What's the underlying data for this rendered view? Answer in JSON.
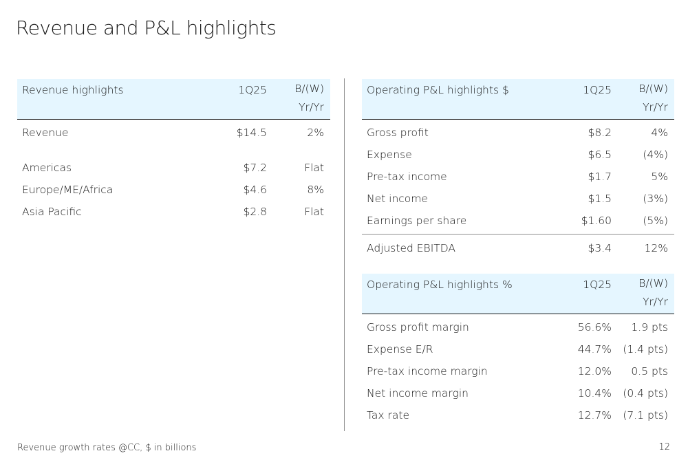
{
  "title": "Revenue and P&L highlights",
  "revenue_table": {
    "header": {
      "label": "Revenue highlights",
      "col1": "1Q25",
      "col2_line1": "B/(W)",
      "col2_line2": "Yr/Yr"
    },
    "rows": [
      {
        "label": "Revenue",
        "value": "$14.5",
        "change": "2%"
      },
      {
        "label": "Americas",
        "value": "$7.2",
        "change": "Flat"
      },
      {
        "label": "Europe/ME/Africa",
        "value": "$4.6",
        "change": "8%"
      },
      {
        "label": "Asia Pacific",
        "value": "$2.8",
        "change": "Flat"
      }
    ]
  },
  "pl_dollar_table": {
    "header": {
      "label": "Operating P&L highlights $",
      "col1": "1Q25",
      "col2_line1": "B/(W)",
      "col2_line2": "Yr/Yr"
    },
    "rows": [
      {
        "label": "Gross profit",
        "value": "$8.2",
        "change": "4%"
      },
      {
        "label": "Expense",
        "value": "$6.5",
        "change": "(4%)"
      },
      {
        "label": "Pre-tax income",
        "value": "$1.7",
        "change": "5%"
      },
      {
        "label": "Net income",
        "value": "$1.5",
        "change": "(3%)"
      },
      {
        "label": "Earnings per share",
        "value": "$1.60",
        "change": "(5%)"
      },
      {
        "label": "Adjusted EBITDA",
        "value": "$3.4",
        "change": "12%"
      }
    ]
  },
  "pl_percent_table": {
    "header": {
      "label": "Operating P&L highlights %",
      "col1": "1Q25",
      "col2_line1": "B/(W)",
      "col2_line2": "Yr/Yr"
    },
    "rows": [
      {
        "label": "Gross profit margin",
        "value": "56.6%",
        "change": "1.9 pts"
      },
      {
        "label": "Expense E/R",
        "value": "44.7%",
        "change": "(1.4 pts)"
      },
      {
        "label": "Pre-tax income margin",
        "value": "12.0%",
        "change": "0.5 pts"
      },
      {
        "label": "Net income margin",
        "value": "10.4%",
        "change": "(0.4 pts)"
      },
      {
        "label": "Tax rate",
        "value": "12.7%",
        "change": "(7.1 pts)"
      }
    ]
  },
  "footnote": "Revenue growth rates @CC, $ in billions",
  "page_number": "12"
}
